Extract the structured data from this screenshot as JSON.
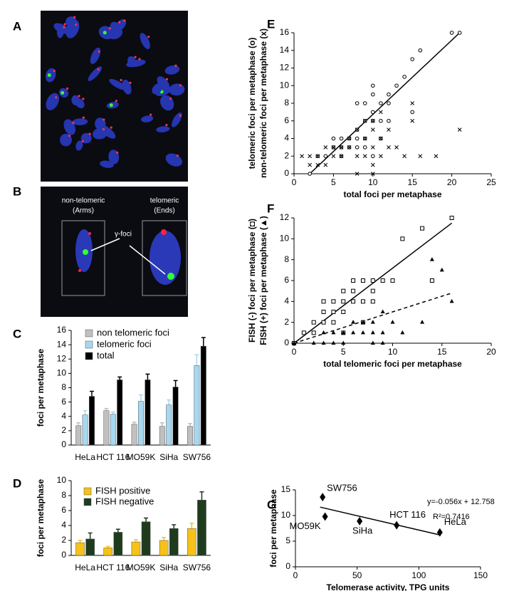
{
  "image_a": {
    "label": "A"
  },
  "image_b": {
    "label": "B",
    "left_label": "non-telomeric",
    "left_sub": "(Arms)",
    "right_label": "telomeric",
    "right_sub": "(Ends)",
    "arrow_label": "γ-foci"
  },
  "chart_data": [
    {
      "type": "bar",
      "label": "C",
      "ylabel": "foci per metaphase",
      "categories": [
        "HeLa",
        "HCT 116",
        "MO59K",
        "SiHa",
        "SW756"
      ],
      "series": [
        {
          "name": "non telomeric foci",
          "color": "#c0c0c0",
          "values": [
            2.7,
            4.8,
            2.9,
            2.6,
            2.6
          ],
          "errors": [
            0.4,
            0.3,
            0.3,
            0.5,
            0.4
          ]
        },
        {
          "name": "telomeric foci",
          "color": "#a6d8f0",
          "values": [
            4.2,
            4.3,
            6.1,
            5.6,
            11.1
          ],
          "errors": [
            0.6,
            0.3,
            0.9,
            0.7,
            1.5
          ]
        },
        {
          "name": "total",
          "color": "#000000",
          "values": [
            6.8,
            9.1,
            9.1,
            8.1,
            13.8
          ],
          "errors": [
            0.7,
            0.4,
            0.8,
            0.9,
            1.2
          ]
        }
      ],
      "ylim": [
        0,
        16
      ],
      "yticks": [
        0,
        2,
        4,
        6,
        8,
        10,
        12,
        14,
        16
      ]
    },
    {
      "type": "bar",
      "label": "D",
      "ylabel": "foci per metaphase",
      "categories": [
        "HeLa",
        "HCT 116",
        "MO59K",
        "SiHa",
        "SW756"
      ],
      "series": [
        {
          "name": "FISH positive",
          "color": "#f6c21a",
          "values": [
            1.7,
            1.0,
            1.8,
            2.0,
            3.6
          ],
          "errors": [
            0.3,
            0.2,
            0.3,
            0.4,
            0.7
          ]
        },
        {
          "name": "FISH negative",
          "color": "#1e3b1e",
          "values": [
            2.2,
            3.1,
            4.5,
            3.6,
            7.4
          ],
          "errors": [
            0.8,
            0.4,
            0.5,
            0.5,
            1.1
          ]
        }
      ],
      "ylim": [
        0,
        10
      ],
      "yticks": [
        0,
        2,
        4,
        6,
        8,
        10
      ]
    },
    {
      "type": "scatter",
      "label": "E",
      "ylabel": [
        "telomeric foci per metaphase (o)",
        "non-telomeric foci per metaphase (x)"
      ],
      "xlabel": "total foci per metaphase",
      "series": [
        {
          "marker": "circle",
          "color": "#000000",
          "x": [
            2,
            3,
            4,
            5,
            5,
            6,
            6,
            7,
            8,
            8,
            8,
            9,
            9,
            9,
            10,
            10,
            10,
            10,
            11,
            11,
            12,
            12,
            13,
            14,
            15,
            16,
            20,
            21,
            8,
            9,
            10,
            12,
            15,
            7,
            6,
            11
          ],
          "y": [
            0,
            2,
            2,
            3,
            4,
            4,
            2,
            4,
            3,
            4,
            5,
            4,
            6,
            8,
            6,
            7,
            9,
            10,
            8,
            4,
            8,
            9,
            10,
            11,
            13,
            14,
            16,
            16,
            8,
            3,
            2,
            6,
            7,
            3,
            3,
            6
          ]
        },
        {
          "marker": "cross",
          "color": "#000000",
          "x": [
            1,
            2,
            2,
            3,
            3,
            4,
            4,
            5,
            5,
            6,
            6,
            7,
            7,
            8,
            8,
            8,
            9,
            9,
            9,
            10,
            10,
            10,
            10,
            11,
            11,
            12,
            12,
            13,
            14,
            15,
            15,
            16,
            18,
            21,
            10,
            11
          ],
          "y": [
            2,
            2,
            1,
            1,
            2,
            3,
            1,
            2,
            3,
            3,
            2,
            3,
            4,
            2,
            0,
            5,
            2,
            4,
            6,
            0,
            1,
            3,
            5,
            2,
            4,
            3,
            5,
            3,
            2,
            8,
            6,
            2,
            2,
            5,
            6,
            7
          ]
        }
      ],
      "lines": [
        {
          "x": [
            2,
            21
          ],
          "y": [
            0,
            16
          ],
          "dash": false
        }
      ],
      "xlim": [
        0,
        25
      ],
      "xticks": [
        0,
        5,
        10,
        15,
        20,
        25
      ],
      "ylim": [
        0,
        16
      ],
      "yticks": [
        0,
        2,
        4,
        6,
        8,
        10,
        12,
        14,
        16
      ]
    },
    {
      "type": "scatter",
      "label": "F",
      "ylabel": [
        "FISH (-) foci per metaphase (◘)",
        "FISH (+) foci per metaphase (▲)"
      ],
      "xlabel": "total telomeric foci per metaphase",
      "series": [
        {
          "marker": "square",
          "color": "#000000",
          "x": [
            0,
            1,
            2,
            2,
            3,
            3,
            4,
            4,
            4,
            5,
            5,
            5,
            6,
            6,
            6,
            7,
            7,
            8,
            8,
            9,
            10,
            11,
            13,
            14,
            16,
            3,
            5,
            7,
            8
          ],
          "y": [
            0,
            1,
            2,
            1,
            2,
            3,
            2,
            3,
            4,
            3,
            4,
            5,
            4,
            5,
            6,
            4,
            6,
            5,
            6,
            6,
            6,
            10,
            11,
            6,
            12,
            4,
            1,
            2,
            4
          ]
        },
        {
          "marker": "triangle",
          "color": "#000000",
          "x": [
            0,
            2,
            3,
            3,
            4,
            5,
            5,
            6,
            6,
            7,
            7,
            8,
            8,
            8,
            9,
            9,
            10,
            11,
            13,
            14,
            15,
            16,
            4,
            9
          ],
          "y": [
            0,
            0,
            0,
            1,
            0,
            0,
            1,
            1,
            2,
            1,
            2,
            0,
            1,
            2,
            1,
            3,
            2,
            1,
            2,
            8,
            7,
            4,
            1,
            0
          ]
        }
      ],
      "lines": [
        {
          "x": [
            0,
            16
          ],
          "y": [
            0,
            11.5
          ],
          "dash": false
        },
        {
          "x": [
            0,
            16
          ],
          "y": [
            0,
            4.8
          ],
          "dash": true
        }
      ],
      "xlim": [
        0,
        20
      ],
      "xticks": [
        0,
        5,
        10,
        15,
        20
      ],
      "ylim": [
        0,
        12
      ],
      "yticks": [
        0,
        2,
        4,
        6,
        8,
        10,
        12
      ]
    },
    {
      "type": "scatter",
      "label": "G",
      "ylabel": "foci per metaphase",
      "xlabel": "Telomerase activity, TPG units",
      "series": [
        {
          "marker": "diamond",
          "color": "#000000",
          "x": [
            22,
            24,
            52,
            82,
            117
          ],
          "y": [
            13.6,
            9.8,
            8.9,
            8.1,
            6.7
          ],
          "point_labels": [
            "SW756",
            "MO59K",
            "SiHa",
            "HCT 116",
            "HeLa"
          ]
        }
      ],
      "lines": [
        {
          "x": [
            20,
            117
          ],
          "y": [
            11.64,
            6.21
          ],
          "dash": false
        }
      ],
      "annotations": [
        "y=-0.056x + 12.758",
        "R²=0.7416"
      ],
      "xlim": [
        0,
        150
      ],
      "xticks": [
        0,
        50,
        100,
        150
      ],
      "ylim": [
        0,
        15
      ],
      "yticks": [
        0,
        5,
        10,
        15
      ]
    }
  ]
}
